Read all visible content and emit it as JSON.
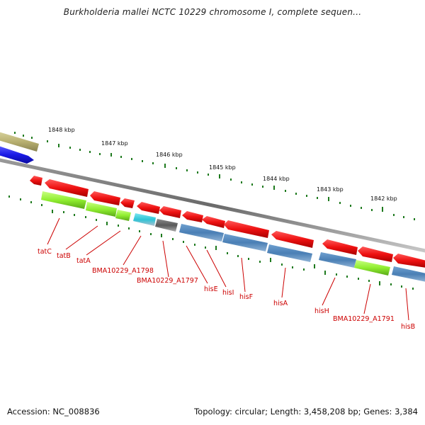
{
  "title": "Burkholderia mallei NCTC 10229 chromosome I, complete sequen...",
  "footer": {
    "accession": "Accession: NC_008836",
    "summary": "Topology: circular; Length: 3,458,208 bp; Genes: 3,384"
  },
  "scale": {
    "ticks": [
      "1848 kbp",
      "1847 kbp",
      "1846 kbp",
      "1845 kbp",
      "1844 kbp",
      "1843 kbp",
      "1842 kbp"
    ]
  },
  "genes": [
    {
      "name": "tatC",
      "color": "#90ee30"
    },
    {
      "name": "tatB",
      "color": "#90ee30"
    },
    {
      "name": "tatA",
      "color": "#90ee30"
    },
    {
      "name": "BMA10229_A1798",
      "color": "#2ec4d6"
    },
    {
      "name": "BMA10229_A1797",
      "color": "#666666"
    },
    {
      "name": "hisE",
      "color": "#4a7fb5"
    },
    {
      "name": "hisI",
      "color": "#4a7fb5"
    },
    {
      "name": "hisF",
      "color": "#4a7fb5"
    },
    {
      "name": "hisA",
      "color": "#4a7fb5"
    },
    {
      "name": "hisH",
      "color": "#4a7fb5"
    },
    {
      "name": "BMA10229_A1791",
      "color": "#90ee30"
    },
    {
      "name": "hisB",
      "color": "#4a7fb5"
    }
  ],
  "colors": {
    "cds": "#ee1111",
    "backbone": "#7a7a7a",
    "ticks": "#1e7a1e",
    "labels": "#cc0000",
    "outer_feature_olive": "#b8b070",
    "outer_feature_blue": "#1a1ae6"
  }
}
